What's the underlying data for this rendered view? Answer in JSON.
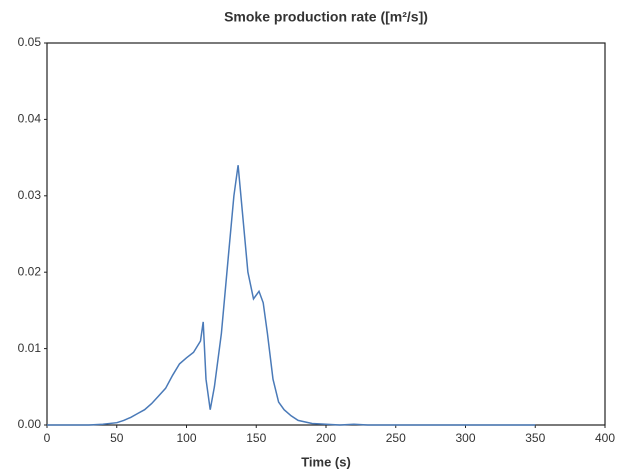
{
  "chart_data": {
    "type": "line",
    "title": "Smoke production rate ([m²/s])",
    "x_label": "Time (s)",
    "x": [
      0,
      10,
      20,
      30,
      40,
      50,
      55,
      60,
      65,
      70,
      75,
      80,
      85,
      90,
      95,
      100,
      105,
      110,
      112,
      114,
      117,
      120,
      125,
      130,
      134,
      137,
      140,
      144,
      148,
      152,
      155,
      158,
      162,
      166,
      170,
      175,
      180,
      190,
      200,
      210,
      220,
      230,
      250,
      300,
      350
    ],
    "series": [
      {
        "name": "Smoke production rate",
        "color": "#4a7ab8",
        "values": [
          0,
          0,
          0,
          0,
          0.0001,
          0.0003,
          0.0006,
          0.001,
          0.0015,
          0.002,
          0.0028,
          0.0038,
          0.0048,
          0.0065,
          0.008,
          0.0088,
          0.0095,
          0.011,
          0.0135,
          0.006,
          0.002,
          0.005,
          0.012,
          0.022,
          0.03,
          0.034,
          0.028,
          0.02,
          0.0165,
          0.0175,
          0.016,
          0.012,
          0.006,
          0.003,
          0.002,
          0.0012,
          0.0006,
          0.0002,
          0.0001,
          0,
          0.0001,
          0,
          0,
          0,
          0
        ]
      }
    ],
    "xlim": [
      0,
      400
    ],
    "xticks": [
      0,
      50,
      100,
      150,
      200,
      250,
      300,
      350,
      400
    ],
    "ylim": [
      0,
      0.05
    ],
    "yticks": [
      {
        "value": 0,
        "label": "0.00"
      },
      0.01,
      0.02,
      0.03,
      0.04,
      0.05
    ]
  }
}
